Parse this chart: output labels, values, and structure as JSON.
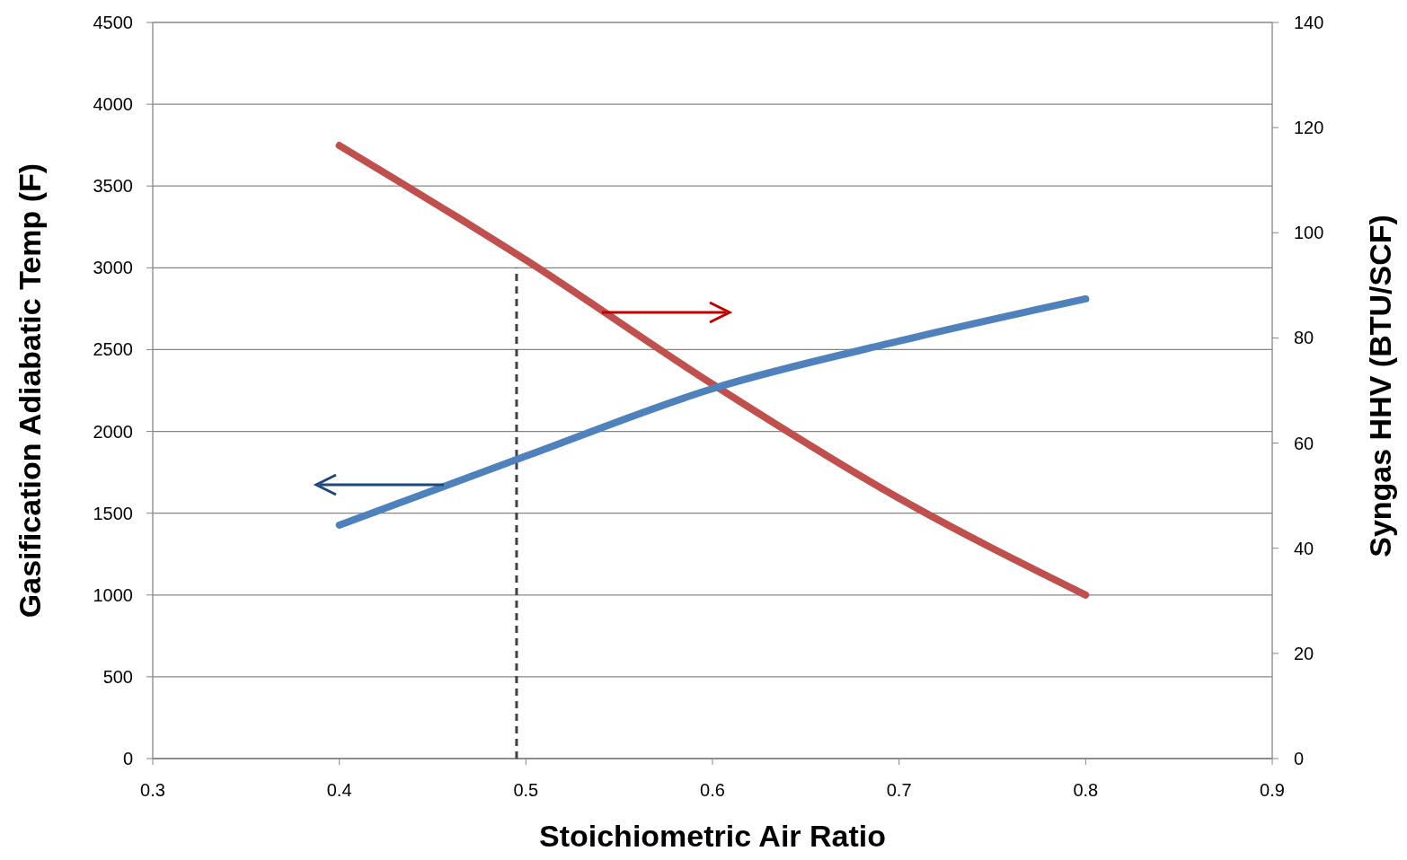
{
  "chart_data": {
    "type": "line",
    "xlabel": "Stoichiometric Air Ratio",
    "ylabel": "Gasification Adiabatic Temp  (F)",
    "y2label": "Syngas HHV  (BTU/SCF)",
    "x": [
      0.4,
      0.5,
      0.6,
      0.7,
      0.8
    ],
    "series": [
      {
        "color": "#4f81bd",
        "values": [
          1427,
          1849,
          2261,
          2552,
          2810
        ]
      },
      {
        "color": "#c0504d",
        "axis": "y2",
        "values": [
          116.6,
          94.8,
          71.2,
          49.5,
          31.1
        ]
      },
      {
        "color": "#404040",
        "x": [
          0.495,
          0.495
        ],
        "values": [
          0,
          3000
        ],
        "line_style": "dashed"
      }
    ],
    "xlim": [
      0.3,
      0.9
    ],
    "xticks": [
      0.3,
      0.4,
      0.5,
      0.6,
      0.7,
      0.8,
      0.9
    ],
    "ylim": [
      0,
      4500
    ],
    "yticks": [
      0,
      500,
      1000,
      1500,
      2000,
      2500,
      3000,
      3500,
      4000,
      4500
    ],
    "y2lim": [
      0,
      140
    ],
    "y2ticks": [
      0,
      20,
      40,
      60,
      80,
      100,
      120,
      140
    ],
    "grid": "y",
    "line_style": "solid",
    "marker": "none"
  }
}
